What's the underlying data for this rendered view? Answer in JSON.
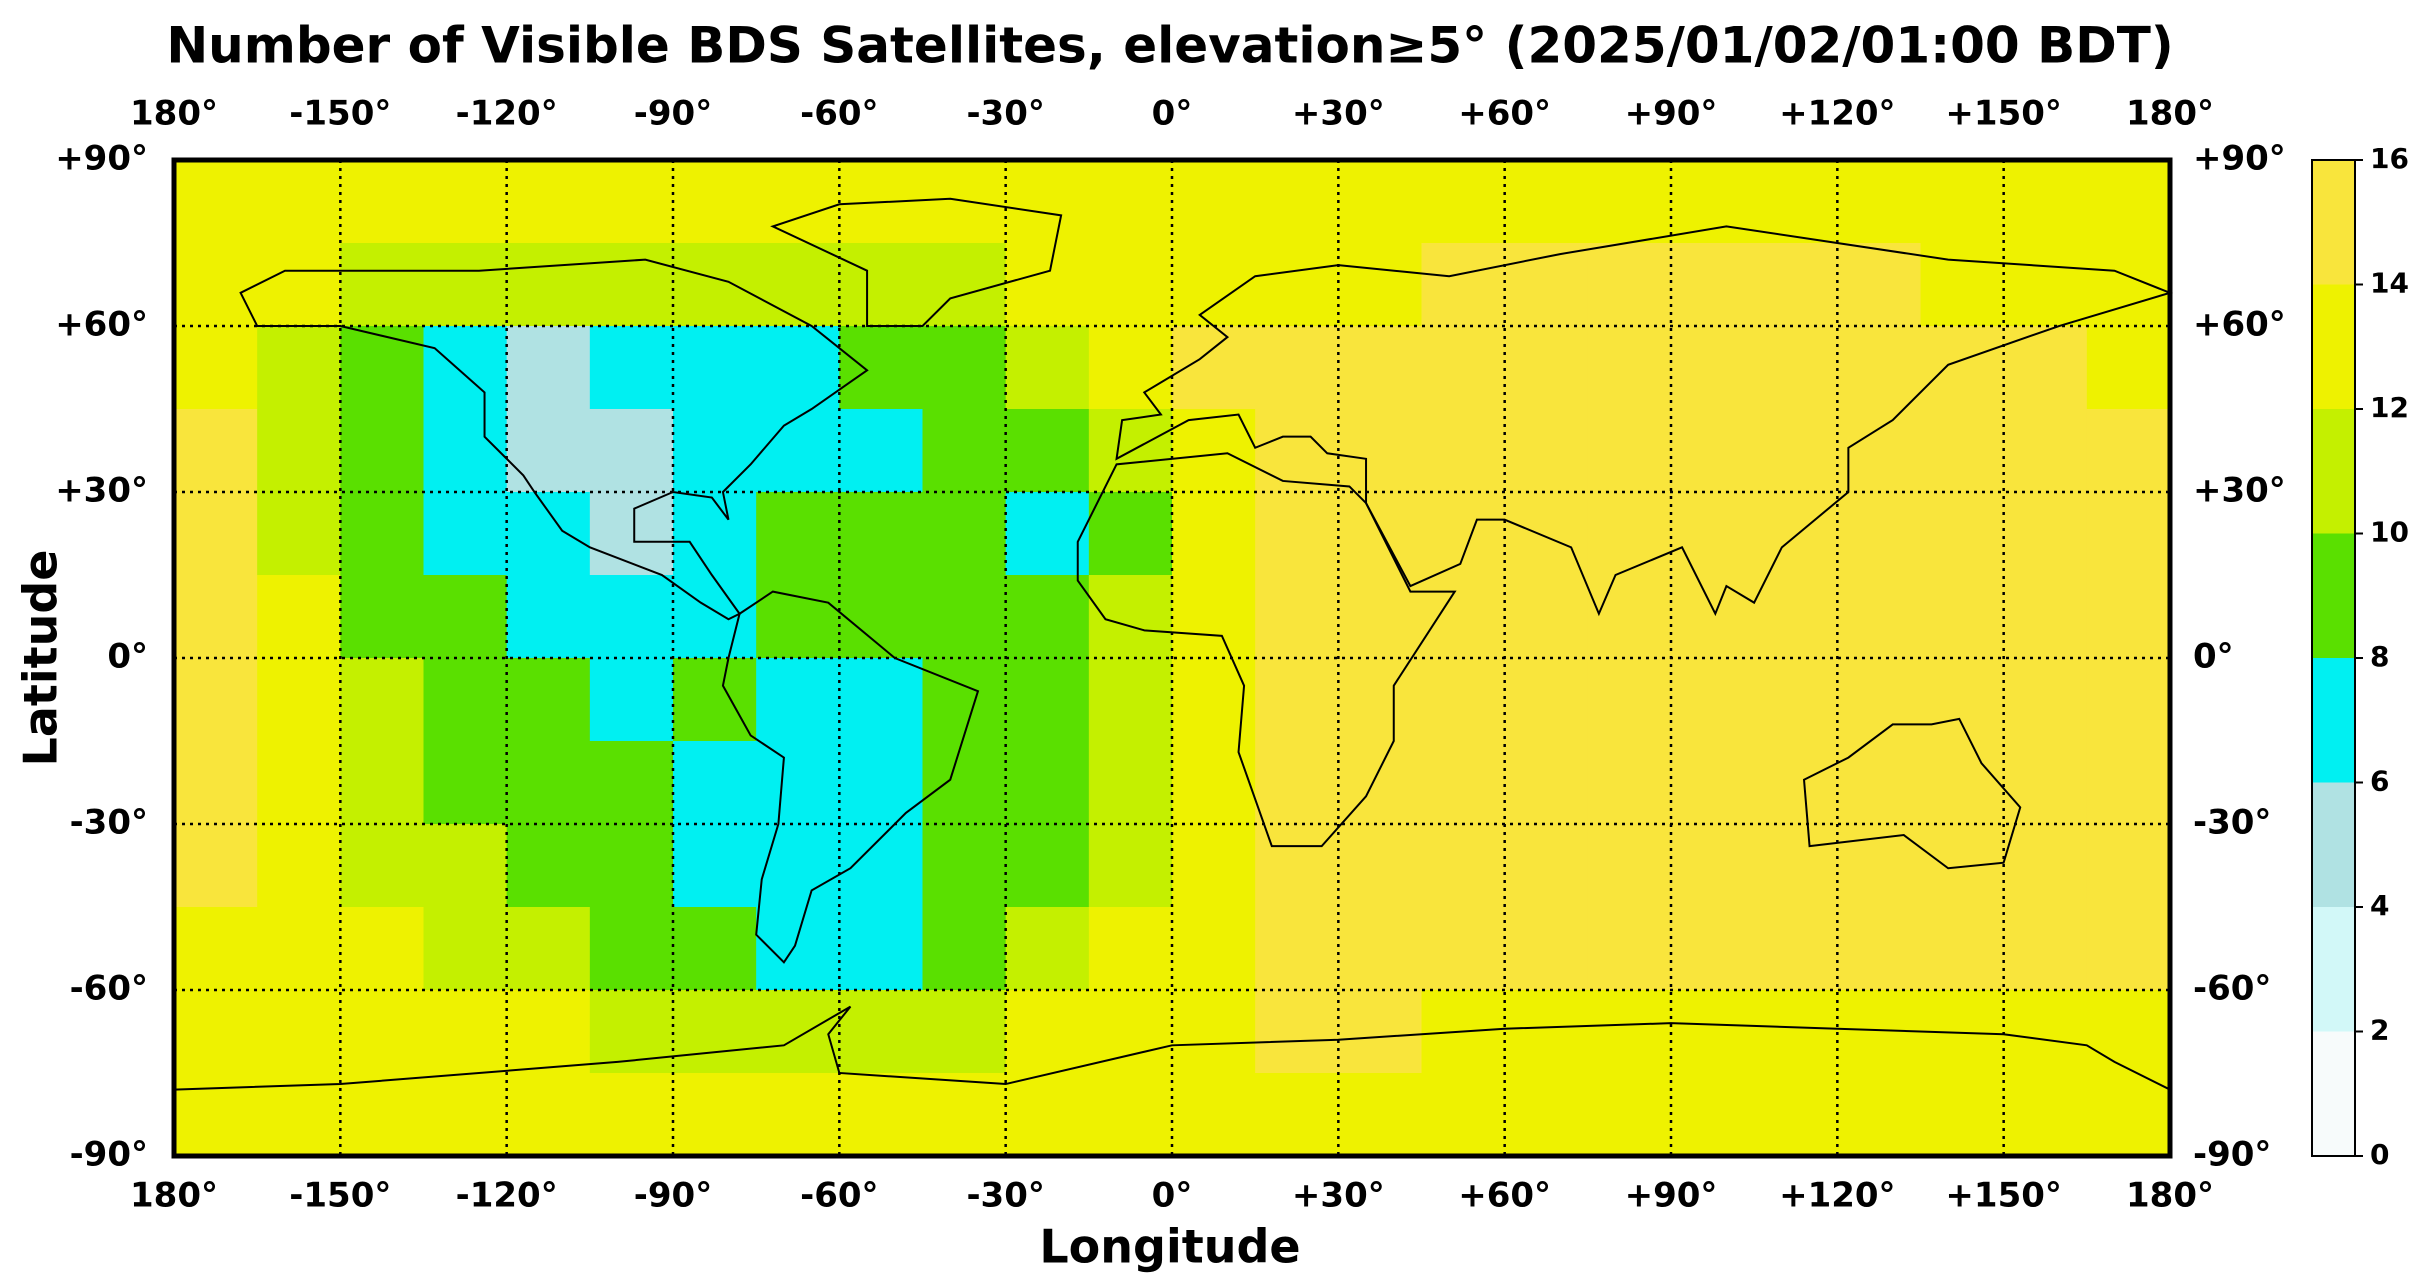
{
  "chart_data": {
    "type": "heatmap",
    "title": "Number of Visible BDS Satellites, elevation≥5° (2025/01/02/01:00 BDT)",
    "xlabel": "Longitude",
    "ylabel": "Latitude",
    "xlim": [
      -180,
      180
    ],
    "ylim": [
      -90,
      90
    ],
    "xticks": [
      {
        "value": -180,
        "label": "180°"
      },
      {
        "value": -150,
        "label": "-150°"
      },
      {
        "value": -120,
        "label": "-120°"
      },
      {
        "value": -90,
        "label": "-90°"
      },
      {
        "value": -60,
        "label": "-60°"
      },
      {
        "value": -30,
        "label": "-30°"
      },
      {
        "value": 0,
        "label": "0°"
      },
      {
        "value": 30,
        "label": "+30°"
      },
      {
        "value": 60,
        "label": "+60°"
      },
      {
        "value": 90,
        "label": "+90°"
      },
      {
        "value": 120,
        "label": "+120°"
      },
      {
        "value": 150,
        "label": "+150°"
      },
      {
        "value": 180,
        "label": "180°"
      }
    ],
    "yticks": [
      {
        "value": 90,
        "label": "+90°"
      },
      {
        "value": 60,
        "label": "+60°"
      },
      {
        "value": 30,
        "label": "+30°"
      },
      {
        "value": 0,
        "label": "0°"
      },
      {
        "value": -30,
        "label": "-30°"
      },
      {
        "value": -60,
        "label": "-60°"
      },
      {
        "value": -90,
        "label": "-90°"
      }
    ],
    "grid": true,
    "x": [
      -172.5,
      -157.5,
      -142.5,
      -127.5,
      -112.5,
      -97.5,
      -82.5,
      -67.5,
      -52.5,
      -37.5,
      -22.5,
      -7.5,
      7.5,
      22.5,
      37.5,
      52.5,
      67.5,
      82.5,
      97.5,
      112.5,
      127.5,
      142.5,
      157.5,
      172.5
    ],
    "y": [
      82.5,
      67.5,
      52.5,
      37.5,
      22.5,
      7.5,
      -7.5,
      -22.5,
      -37.5,
      -52.5,
      -67.5,
      -82.5
    ],
    "values": [
      [
        13,
        13,
        13,
        13,
        13,
        13,
        13,
        13,
        13,
        13,
        13,
        13,
        13,
        13,
        13,
        13,
        13,
        13,
        13,
        13,
        13,
        13,
        13,
        13
      ],
      [
        13,
        13,
        11,
        11,
        11,
        11,
        11,
        11,
        11,
        11,
        13,
        13,
        13,
        13,
        13,
        15,
        15,
        15,
        15,
        15,
        15,
        13,
        13,
        13
      ],
      [
        13,
        11,
        9,
        7,
        5,
        7,
        7,
        7,
        9,
        9,
        11,
        13,
        15,
        15,
        15,
        15,
        15,
        15,
        15,
        15,
        15,
        15,
        15,
        13
      ],
      [
        15,
        11,
        9,
        7,
        5,
        5,
        7,
        7,
        7,
        9,
        9,
        11,
        13,
        15,
        15,
        15,
        15,
        15,
        15,
        15,
        15,
        15,
        15,
        15
      ],
      [
        15,
        11,
        9,
        7,
        7,
        5,
        7,
        9,
        9,
        9,
        7,
        9,
        13,
        15,
        15,
        15,
        15,
        15,
        15,
        15,
        15,
        15,
        15,
        15
      ],
      [
        15,
        13,
        9,
        9,
        7,
        7,
        7,
        9,
        9,
        9,
        9,
        11,
        13,
        15,
        15,
        15,
        15,
        15,
        15,
        15,
        15,
        15,
        15,
        15
      ],
      [
        15,
        13,
        11,
        9,
        9,
        7,
        9,
        7,
        7,
        9,
        9,
        11,
        13,
        15,
        15,
        15,
        15,
        15,
        15,
        15,
        15,
        15,
        15,
        15
      ],
      [
        15,
        13,
        11,
        9,
        9,
        9,
        7,
        7,
        7,
        9,
        9,
        11,
        13,
        15,
        15,
        15,
        15,
        15,
        15,
        15,
        15,
        15,
        15,
        15
      ],
      [
        15,
        13,
        11,
        11,
        9,
        9,
        7,
        7,
        7,
        9,
        9,
        11,
        13,
        15,
        15,
        15,
        15,
        15,
        15,
        15,
        15,
        15,
        15,
        15
      ],
      [
        13,
        13,
        13,
        11,
        11,
        9,
        9,
        7,
        7,
        9,
        11,
        13,
        13,
        15,
        15,
        15,
        15,
        15,
        15,
        15,
        15,
        15,
        15,
        15
      ],
      [
        13,
        13,
        13,
        13,
        13,
        11,
        11,
        11,
        11,
        11,
        13,
        13,
        13,
        15,
        15,
        13,
        13,
        13,
        13,
        13,
        13,
        13,
        13,
        13
      ],
      [
        13,
        13,
        13,
        13,
        13,
        13,
        13,
        13,
        13,
        13,
        13,
        13,
        13,
        13,
        13,
        13,
        13,
        13,
        13,
        13,
        13,
        13,
        13,
        13
      ]
    ],
    "colorbar": {
      "ticks": [
        0,
        2,
        4,
        6,
        8,
        10,
        12,
        14,
        16
      ],
      "colors": [
        "#f7fbfb",
        "#d2f8f8",
        "#b0e2e3",
        "#00f0f2",
        "#5ae000",
        "#c4f000",
        "#eef200",
        "#f9e53c"
      ]
    }
  }
}
